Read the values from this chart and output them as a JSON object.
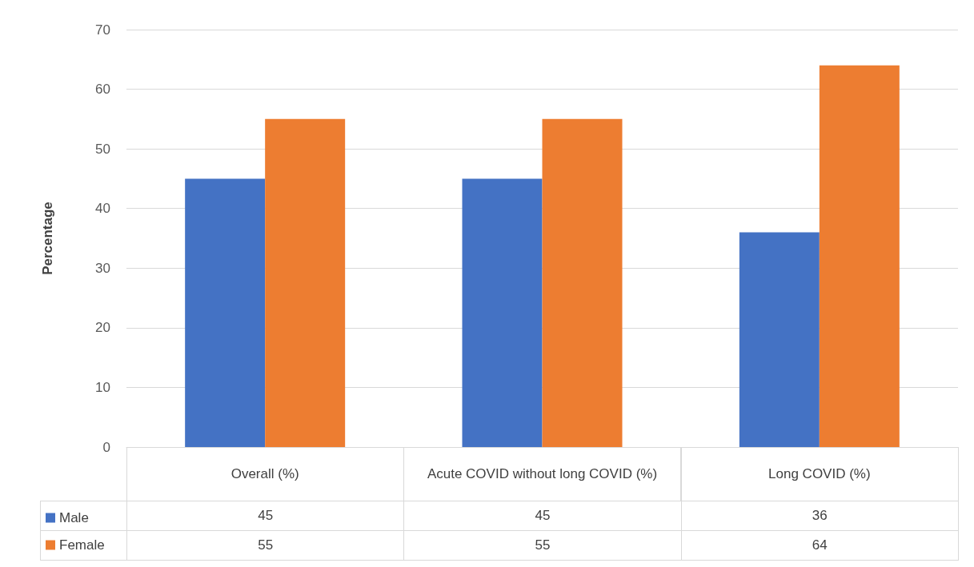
{
  "chart_data": {
    "type": "bar",
    "ylabel": "Percentage",
    "categories": [
      "Overall (%)",
      "Acute COVID without long COVID (%)",
      "Long COVID (%)"
    ],
    "series": [
      {
        "name": "Male",
        "color": "#4472c4",
        "values": [
          45,
          45,
          36
        ]
      },
      {
        "name": "Female",
        "color": "#ed7d31",
        "values": [
          55,
          55,
          64
        ]
      }
    ],
    "ylim": [
      0,
      70
    ],
    "yticks": [
      0,
      10,
      20,
      30,
      40,
      50,
      60,
      70
    ],
    "grid": "y",
    "legend": "bottom left",
    "data_labels": true
  }
}
